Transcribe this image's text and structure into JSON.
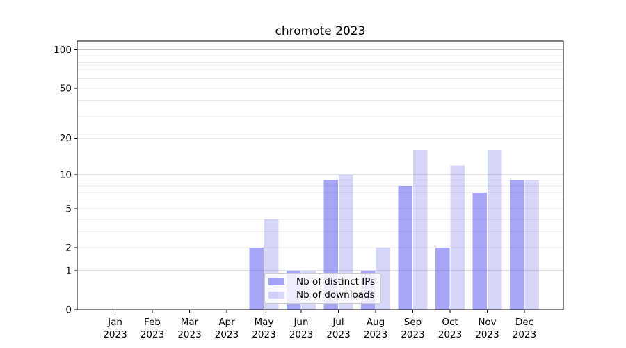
{
  "chart_data": {
    "type": "bar",
    "title": "chromote 2023",
    "categories": [
      "Jan 2023",
      "Feb 2023",
      "Mar 2023",
      "Apr 2023",
      "May 2023",
      "Jun 2023",
      "Jul 2023",
      "Aug 2023",
      "Sep 2023",
      "Oct 2023",
      "Nov 2023",
      "Dec 2023"
    ],
    "series": [
      {
        "name": "Nb of distinct IPs",
        "color": "#5555F085",
        "values": [
          0,
          0,
          0,
          0,
          2,
          1,
          9,
          1,
          8,
          2,
          7,
          9
        ]
      },
      {
        "name": "Nb of downloads",
        "color": "#5555F03D",
        "values": [
          0,
          0,
          0,
          0,
          4,
          1,
          10,
          2,
          16,
          12,
          16,
          9
        ]
      }
    ],
    "xlabel": "",
    "ylabel": "",
    "yscale": "symlog (log1p)",
    "ylim": [
      0,
      117
    ],
    "yticks": [
      0,
      1,
      2,
      5,
      10,
      20,
      50,
      100
    ],
    "major_gridlines": [
      1,
      10,
      100
    ],
    "minor_gridlines": [
      2,
      3,
      4,
      5,
      6,
      7,
      8,
      9,
      20,
      30,
      40,
      50,
      60,
      70,
      80,
      90
    ],
    "grid": true,
    "legend_position": "inside lower-center"
  },
  "colors": {
    "grid_major": "#c3c3c3",
    "grid_minor": "#e8e8e8",
    "spine": "#000000",
    "text": "#000000",
    "background": "#ffffff"
  }
}
